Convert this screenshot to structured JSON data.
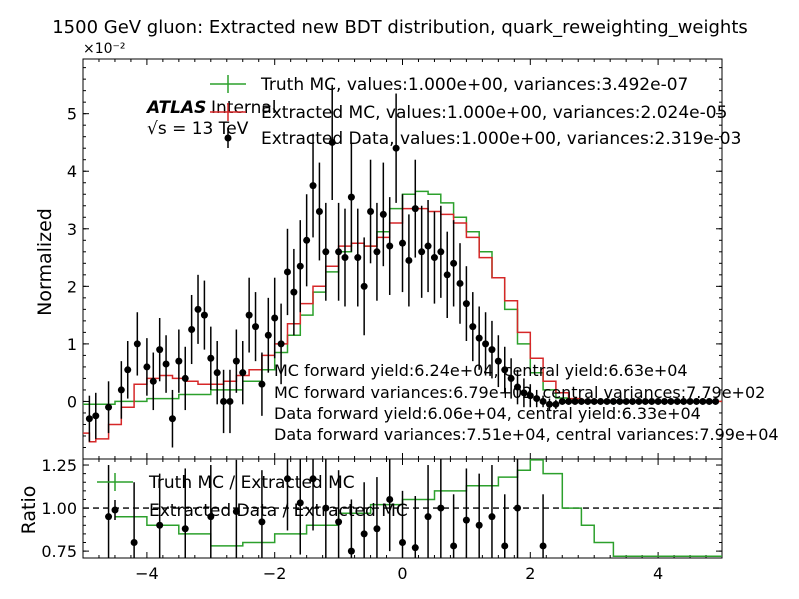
{
  "chart_data": [
    {
      "type": "line",
      "title": "1500 GeV gluon: Extracted new BDT distribution, quark_reweighting_weights",
      "ylabel": "Normalized",
      "y_multiplier_label": "×10⁻²",
      "xlim": [
        -5,
        5
      ],
      "ylim": [
        -1.0,
        5.95
      ],
      "yticks": [
        0,
        1,
        2,
        3,
        4,
        5
      ],
      "ytick_labels": [
        "0",
        "1",
        "2",
        "3",
        "4",
        "5"
      ],
      "grid": false,
      "legend_position": "top-right",
      "atlas_label": "ATLAS",
      "atlas_sublabel": "Internal",
      "energy_label": "√s = 13 TeV",
      "series": [
        {
          "name": "Truth MC, values:1.000e+00, variances:3.492e-07",
          "color": "#2ca02c",
          "style": "step",
          "x": [
            -5.0,
            -4.5,
            -4.0,
            -3.5,
            -3.0,
            -2.5,
            -2.2,
            -2.0,
            -1.8,
            -1.6,
            -1.4,
            -1.2,
            -1.0,
            -0.8,
            -0.6,
            -0.4,
            -0.2,
            0.0,
            0.2,
            0.4,
            0.6,
            0.8,
            1.0,
            1.2,
            1.4,
            1.6,
            1.8,
            2.0,
            2.2,
            2.4,
            2.6,
            2.8,
            3.0,
            3.5,
            4.0,
            5.0
          ],
          "values": [
            -0.05,
            0.0,
            0.05,
            0.12,
            0.2,
            0.35,
            0.55,
            0.85,
            1.15,
            1.5,
            1.9,
            2.25,
            2.6,
            2.75,
            2.7,
            2.95,
            3.35,
            3.6,
            3.65,
            3.6,
            3.45,
            3.2,
            2.95,
            2.6,
            2.15,
            1.6,
            1.0,
            0.5,
            0.2,
            0.06,
            0.02,
            0.01,
            0.0,
            0.0,
            0.0,
            0.0
          ]
        },
        {
          "name": "Extracted MC, values:1.000e+00, variances:2.024e-05",
          "color": "#d62728",
          "style": "step",
          "x": [
            -5.0,
            -4.9,
            -4.8,
            -4.6,
            -4.4,
            -4.2,
            -4.0,
            -3.8,
            -3.6,
            -3.4,
            -3.2,
            -3.0,
            -2.8,
            -2.6,
            -2.4,
            -2.2,
            -2.0,
            -1.8,
            -1.6,
            -1.4,
            -1.2,
            -1.0,
            -0.8,
            -0.6,
            -0.4,
            -0.2,
            0.0,
            0.2,
            0.4,
            0.6,
            0.8,
            1.0,
            1.2,
            1.4,
            1.6,
            1.8,
            2.0,
            2.2,
            2.4,
            2.6,
            2.8,
            3.0,
            3.5,
            4.0,
            5.0
          ],
          "values": [
            -0.55,
            -0.7,
            -0.65,
            -0.4,
            -0.1,
            0.3,
            0.4,
            0.45,
            0.4,
            0.35,
            0.3,
            0.3,
            0.35,
            0.45,
            0.55,
            0.8,
            1.0,
            1.35,
            1.7,
            2.0,
            2.35,
            2.7,
            2.75,
            2.7,
            2.85,
            3.1,
            3.35,
            3.35,
            3.3,
            3.25,
            3.1,
            2.85,
            2.5,
            2.15,
            1.75,
            1.2,
            0.75,
            0.35,
            0.15,
            0.05,
            0.02,
            0.01,
            0.0,
            0.0,
            0.0
          ]
        },
        {
          "name": "Extracted Data, values:1.000e+00, variances:2.319e-03",
          "color": "#000000",
          "style": "errorbar",
          "x": [
            -4.9,
            -4.8,
            -4.6,
            -4.4,
            -4.3,
            -4.15,
            -4.0,
            -3.9,
            -3.8,
            -3.7,
            -3.6,
            -3.5,
            -3.4,
            -3.3,
            -3.2,
            -3.1,
            -3.0,
            -2.9,
            -2.8,
            -2.7,
            -2.6,
            -2.5,
            -2.4,
            -2.3,
            -2.2,
            -2.1,
            -2.0,
            -1.9,
            -1.8,
            -1.7,
            -1.6,
            -1.5,
            -1.4,
            -1.3,
            -1.2,
            -1.1,
            -1.0,
            -0.9,
            -0.8,
            -0.7,
            -0.6,
            -0.5,
            -0.4,
            -0.3,
            -0.2,
            -0.1,
            0.0,
            0.1,
            0.2,
            0.3,
            0.4,
            0.5,
            0.6,
            0.7,
            0.8,
            0.9,
            1.0,
            1.1,
            1.2,
            1.3,
            1.4,
            1.5,
            1.6,
            1.7,
            1.8,
            1.9,
            2.0,
            2.1,
            2.2,
            2.3,
            2.4,
            2.5,
            2.6,
            2.7,
            2.8,
            2.9,
            3.0,
            3.1,
            3.2,
            3.3,
            3.4,
            3.5,
            3.6,
            3.7,
            3.8,
            3.9,
            4.0,
            4.1,
            4.2,
            4.3,
            4.4,
            4.5,
            4.6,
            4.7,
            4.8,
            4.9
          ],
          "values": [
            -0.3,
            -0.25,
            -0.1,
            0.2,
            0.55,
            1.0,
            0.6,
            0.35,
            0.9,
            0.65,
            -0.3,
            0.7,
            0.4,
            1.25,
            1.6,
            1.5,
            0.75,
            0.5,
            0.0,
            0.0,
            0.7,
            0.5,
            1.5,
            1.3,
            0.3,
            1.15,
            1.45,
            1.0,
            2.25,
            1.9,
            2.35,
            2.8,
            3.75,
            3.3,
            2.6,
            4.5,
            2.6,
            2.5,
            3.55,
            2.5,
            2.0,
            3.3,
            2.6,
            3.25,
            2.7,
            4.4,
            2.75,
            2.45,
            3.35,
            2.6,
            2.7,
            2.5,
            2.6,
            2.2,
            2.4,
            2.05,
            1.7,
            1.3,
            1.1,
            1.0,
            0.9,
            0.7,
            0.55,
            0.4,
            0.25,
            0.15,
            0.1,
            0.05,
            0.0,
            -0.05,
            -0.05,
            0.0,
            0.0,
            0.0,
            0.0,
            0.0,
            0.0,
            0.0,
            0.0,
            0.0,
            0.0,
            0.0,
            0.0,
            0.0,
            0.0,
            0.0,
            0.0,
            0.0,
            0.0,
            0.0,
            0.0,
            0.0,
            0.0,
            0.0,
            0.0,
            0.0
          ],
          "errors": [
            0.4,
            0.4,
            0.45,
            0.5,
            0.5,
            0.55,
            0.5,
            0.5,
            0.55,
            0.5,
            0.5,
            0.55,
            0.55,
            0.6,
            0.6,
            0.6,
            0.55,
            0.55,
            0.55,
            0.55,
            0.55,
            0.55,
            0.65,
            0.6,
            0.55,
            0.65,
            0.7,
            0.7,
            0.75,
            0.75,
            0.8,
            0.8,
            0.9,
            0.85,
            0.85,
            1.0,
            0.85,
            0.85,
            0.95,
            0.85,
            0.85,
            0.9,
            0.85,
            0.9,
            0.85,
            0.95,
            0.85,
            0.8,
            0.85,
            0.8,
            0.8,
            0.8,
            0.8,
            0.75,
            0.75,
            0.7,
            0.65,
            0.6,
            0.55,
            0.55,
            0.5,
            0.45,
            0.4,
            0.35,
            0.3,
            0.25,
            0.2,
            0.15,
            0.1,
            0.1,
            0.08,
            0.05,
            0.05,
            0.04,
            0.03,
            0.02,
            0.02,
            0.02,
            0.02,
            0.02,
            0.02,
            0.02,
            0.02,
            0.02,
            0.02,
            0.02,
            0.02,
            0.02,
            0.02,
            0.02,
            0.02,
            0.02,
            0.02,
            0.02,
            0.02,
            0.02
          ]
        }
      ],
      "annotations": [
        "MC forward yield:6.24e+04, central yield:6.63e+04",
        "MC forward variances:6.79e+02, central variances:7.79e+02",
        "Data forward yield:6.06e+04, central yield:6.33e+04",
        "Data forward variances:7.51e+04, central variances:7.99e+04"
      ]
    },
    {
      "type": "line",
      "ylabel": "Ratio",
      "xlim": [
        -5,
        5
      ],
      "ylim": [
        0.71,
        1.285
      ],
      "xticks": [
        -4,
        -2,
        0,
        2,
        4
      ],
      "xtick_labels": [
        "−4",
        "−2",
        "0",
        "2",
        "4"
      ],
      "yticks": [
        0.75,
        1.0,
        1.25
      ],
      "ytick_labels": [
        "0.75",
        "1.00",
        "1.25"
      ],
      "reference_line": 1.0,
      "legend_position": "top-left",
      "series": [
        {
          "name": "Truth MC / Extracted MC",
          "color": "#2ca02c",
          "style": "step",
          "x": [
            -4.5,
            -4.0,
            -3.5,
            -3.0,
            -2.5,
            -2.0,
            -1.5,
            -1.0,
            -0.5,
            0.0,
            0.5,
            1.0,
            1.5,
            1.8,
            2.0,
            2.2,
            2.5,
            2.8,
            3.0,
            3.3
          ],
          "values": [
            0.95,
            0.9,
            0.85,
            0.78,
            0.8,
            0.85,
            0.9,
            0.97,
            1.02,
            1.05,
            1.1,
            1.13,
            1.18,
            1.22,
            1.28,
            1.2,
            1.0,
            0.9,
            0.8,
            0.72
          ]
        },
        {
          "name": "Extracted Data / Extracted MC",
          "color": "#000000",
          "style": "errorbar",
          "x": [
            -4.6,
            -4.2,
            -3.8,
            -3.4,
            -3.0,
            -2.6,
            -2.2,
            -1.8,
            -1.6,
            -1.4,
            -1.2,
            -1.0,
            -0.8,
            -0.6,
            -0.4,
            -0.2,
            0.0,
            0.2,
            0.4,
            0.6,
            0.8,
            1.0,
            1.2,
            1.4,
            1.6,
            1.8,
            2.2
          ],
          "values": [
            0.95,
            0.8,
            0.9,
            0.88,
            0.95,
            0.98,
            0.92,
            1.17,
            1.03,
            1.17,
            1.0,
            0.92,
            0.75,
            0.85,
            0.88,
            1.05,
            0.8,
            0.77,
            0.95,
            1.0,
            0.78,
            0.93,
            0.9,
            0.95,
            0.78,
            1.0,
            0.78
          ],
          "errors": [
            0.3,
            0.35,
            0.3,
            0.35,
            0.3,
            0.3,
            0.3,
            0.3,
            0.3,
            0.3,
            0.3,
            0.3,
            0.3,
            0.3,
            0.3,
            0.3,
            0.3,
            0.3,
            0.3,
            0.3,
            0.3,
            0.3,
            0.3,
            0.3,
            0.3,
            0.3,
            0.3
          ]
        }
      ]
    }
  ]
}
